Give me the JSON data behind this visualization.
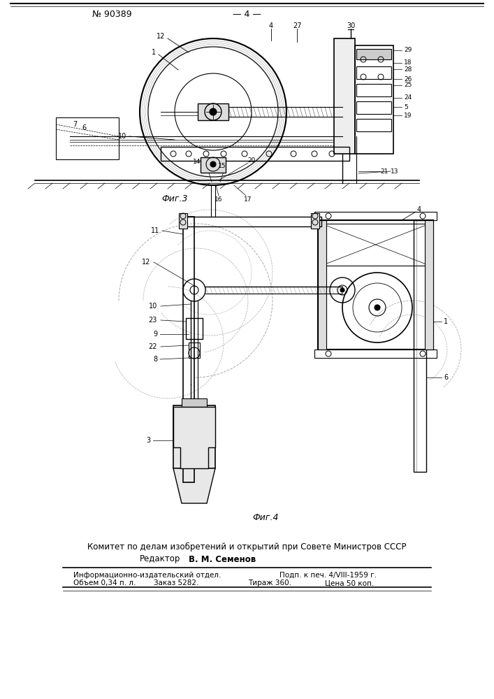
{
  "page_number": "№ 90389",
  "page_label": "— 4 —",
  "fig3_label": "Фиг.3",
  "fig4_label": "Фиг.4",
  "committee_text": "Комитет по делам изобретений и открытий при Совете Министров СССР",
  "editor_label": "Редактор",
  "editor_name": "В. М. Семенов",
  "info_line1_left": "Информационно-издательский отдел.",
  "info_line1_right": "Подп. к печ. 4/VIII-1959 г.",
  "info_line2_left": "Объем 0,34 п. л.",
  "info_line2_middle": "Заказ 5282.",
  "info_line2_right1": "Тираж 360.",
  "info_line2_right2": "Цена 50 коп.",
  "bg_color": "#ffffff"
}
